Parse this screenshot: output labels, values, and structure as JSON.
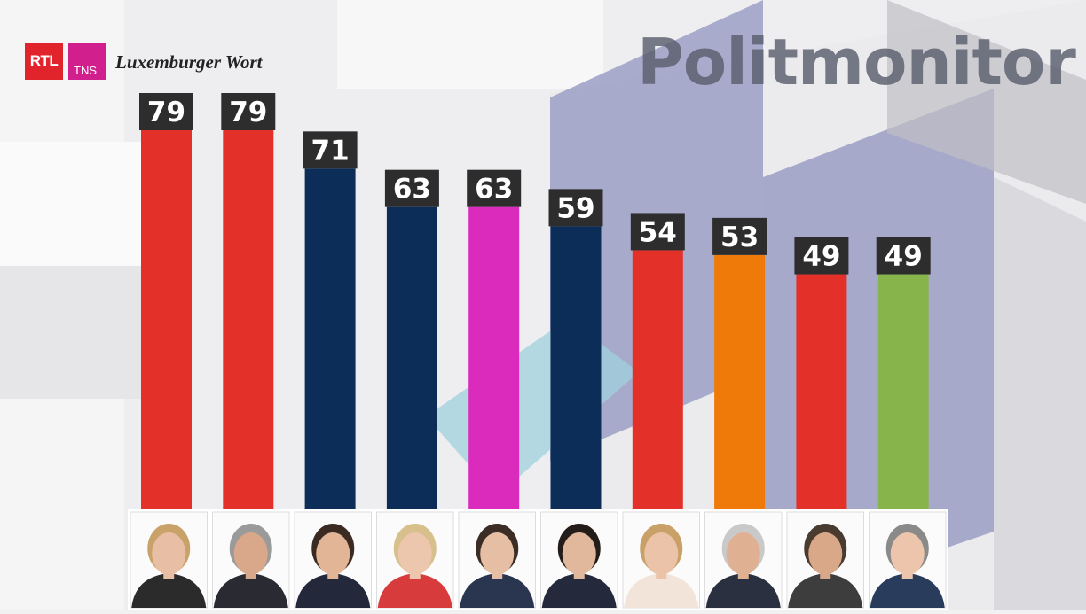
{
  "header": {
    "logo_rtl": "RTL",
    "logo_tns": "TNS",
    "logo_newspaper": "Luxemburger Wort",
    "brand_title": "Politmonitor"
  },
  "chart_data": {
    "type": "bar",
    "categories": [
      "",
      "",
      "",
      "",
      "",
      "",
      "",
      "",
      "",
      ""
    ],
    "values": [
      79,
      79,
      71,
      63,
      63,
      59,
      54,
      53,
      49,
      49
    ],
    "bar_colors": [
      "#e3312a",
      "#e3312a",
      "#0c2d57",
      "#0c2d57",
      "#da2bbd",
      "#0c2d57",
      "#e3312a",
      "#ef7a0a",
      "#e3312a",
      "#88b44c"
    ],
    "label_box_color": "#2d2d2d",
    "ylim": [
      0,
      100
    ],
    "title": "",
    "xlabel": "",
    "ylabel": "",
    "grid": false,
    "legend": "none"
  },
  "photos": {
    "count": 10,
    "portraits": [
      {
        "hair": "#c9a26a",
        "jacket": "#2b2b2b",
        "skin": "#e8bfa4"
      },
      {
        "hair": "#9a9a9a",
        "jacket": "#2a2a33",
        "skin": "#d9a88b"
      },
      {
        "hair": "#3a2a22",
        "jacket": "#23283a",
        "skin": "#e2b597"
      },
      {
        "hair": "#d8c08c",
        "jacket": "#d83b3b",
        "skin": "#ecc6ad"
      },
      {
        "hair": "#3b2d26",
        "jacket": "#2a3550",
        "skin": "#e6bea4"
      },
      {
        "hair": "#241c18",
        "jacket": "#242a3b",
        "skin": "#e1b89c"
      },
      {
        "hair": "#c9a067",
        "jacket": "#f2e4d8",
        "skin": "#ebc3a8"
      },
      {
        "hair": "#c9c9c9",
        "jacket": "#2a3040",
        "skin": "#e0b093"
      },
      {
        "hair": "#4a3b30",
        "jacket": "#3d3d3d",
        "skin": "#d9a888"
      },
      {
        "hair": "#8a8a88",
        "jacket": "#2a3c5c",
        "skin": "#ecc5ac"
      }
    ]
  }
}
